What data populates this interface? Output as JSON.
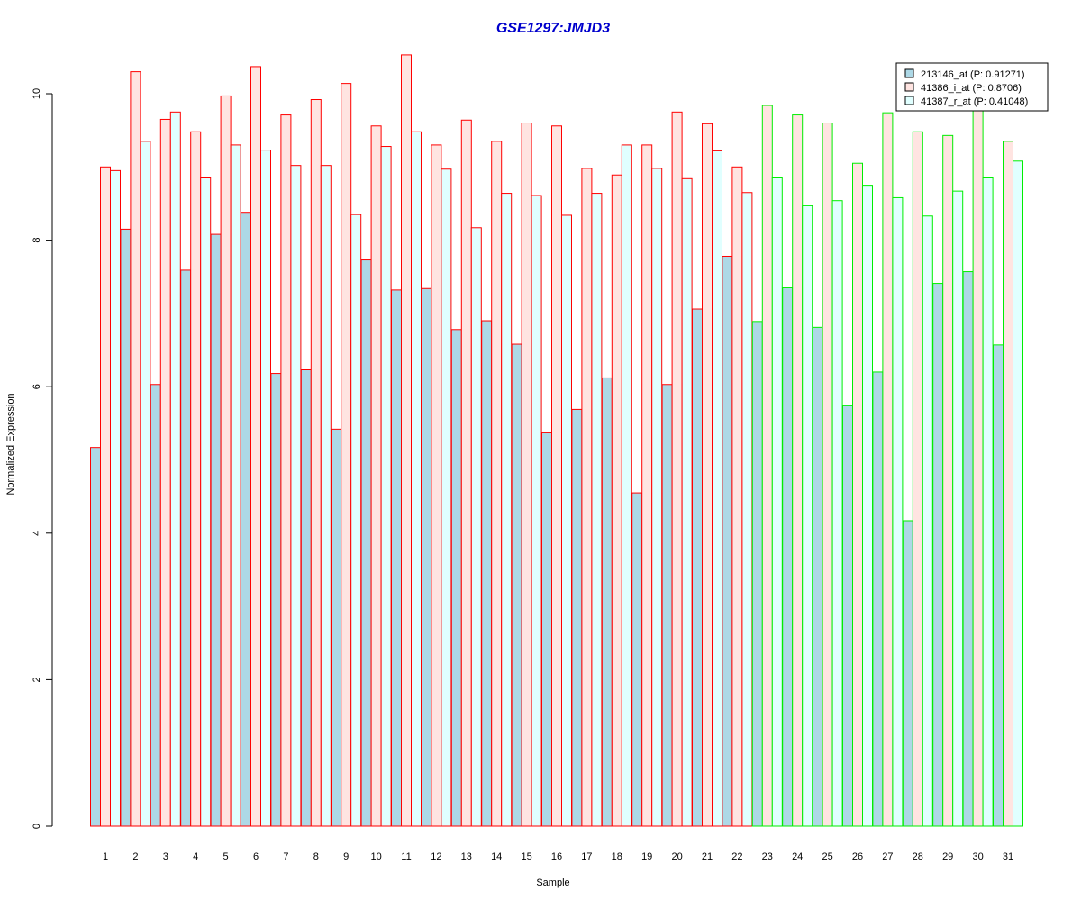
{
  "chart_data": {
    "type": "bar",
    "title": "GSE1297:JMJD3",
    "title_color": "#0000cc",
    "xlabel": "Sample",
    "ylabel": "Normalized Expression",
    "ylim": [
      0,
      10
    ],
    "yticks": [
      "0",
      "2",
      "4",
      "6",
      "8",
      "10"
    ],
    "ytick_values": [
      0,
      2,
      4,
      6,
      8,
      10
    ],
    "grid": false,
    "legend_position": "top-right",
    "categories": [
      "1",
      "2",
      "3",
      "4",
      "5",
      "6",
      "7",
      "8",
      "9",
      "10",
      "11",
      "12",
      "13",
      "14",
      "15",
      "16",
      "17",
      "18",
      "19",
      "20",
      "21",
      "22",
      "23",
      "24",
      "25",
      "26",
      "27",
      "28",
      "29",
      "30",
      "31"
    ],
    "group_colors": {
      "red": "#ff0000",
      "green": "#00ee00"
    },
    "group_of_sample": [
      "red",
      "red",
      "red",
      "red",
      "red",
      "red",
      "red",
      "red",
      "red",
      "red",
      "red",
      "red",
      "red",
      "red",
      "red",
      "red",
      "red",
      "red",
      "red",
      "red",
      "red",
      "red",
      "green",
      "green",
      "green",
      "green",
      "green",
      "green",
      "green",
      "green",
      "green"
    ],
    "series": [
      {
        "name": "213146_at (P: 0.91271)",
        "fill": "#add8e6",
        "values": [
          5.17,
          8.15,
          6.03,
          7.59,
          8.08,
          8.38,
          6.18,
          6.23,
          5.42,
          7.73,
          7.32,
          7.34,
          6.78,
          6.9,
          6.58,
          5.37,
          5.69,
          6.12,
          4.55,
          6.03,
          7.06,
          7.78,
          6.89,
          7.35,
          6.81,
          5.74,
          6.2,
          4.17,
          7.41,
          7.57,
          6.57
        ]
      },
      {
        "name": "41386_i_at (P: 0.8706)",
        "fill": "#ffe4e1",
        "values": [
          9.0,
          10.3,
          9.65,
          9.48,
          9.97,
          10.37,
          9.71,
          9.92,
          10.14,
          9.56,
          10.53,
          9.3,
          9.64,
          9.35,
          9.6,
          9.56,
          8.98,
          8.89,
          9.3,
          9.75,
          9.59,
          9.0,
          9.84,
          9.71,
          9.6,
          9.05,
          9.74,
          9.48,
          9.43,
          9.84,
          9.35
        ]
      },
      {
        "name": "41387_r_at (P: 0.41048)",
        "fill": "#e0ffff",
        "values": [
          8.95,
          9.35,
          9.75,
          8.85,
          9.3,
          9.23,
          9.02,
          9.02,
          8.35,
          9.28,
          9.48,
          8.97,
          8.17,
          8.64,
          8.61,
          8.34,
          8.64,
          9.3,
          8.98,
          8.84,
          9.22,
          8.65,
          8.85,
          8.47,
          8.54,
          8.75,
          8.58,
          8.33,
          8.67,
          8.85,
          9.08
        ]
      }
    ]
  }
}
